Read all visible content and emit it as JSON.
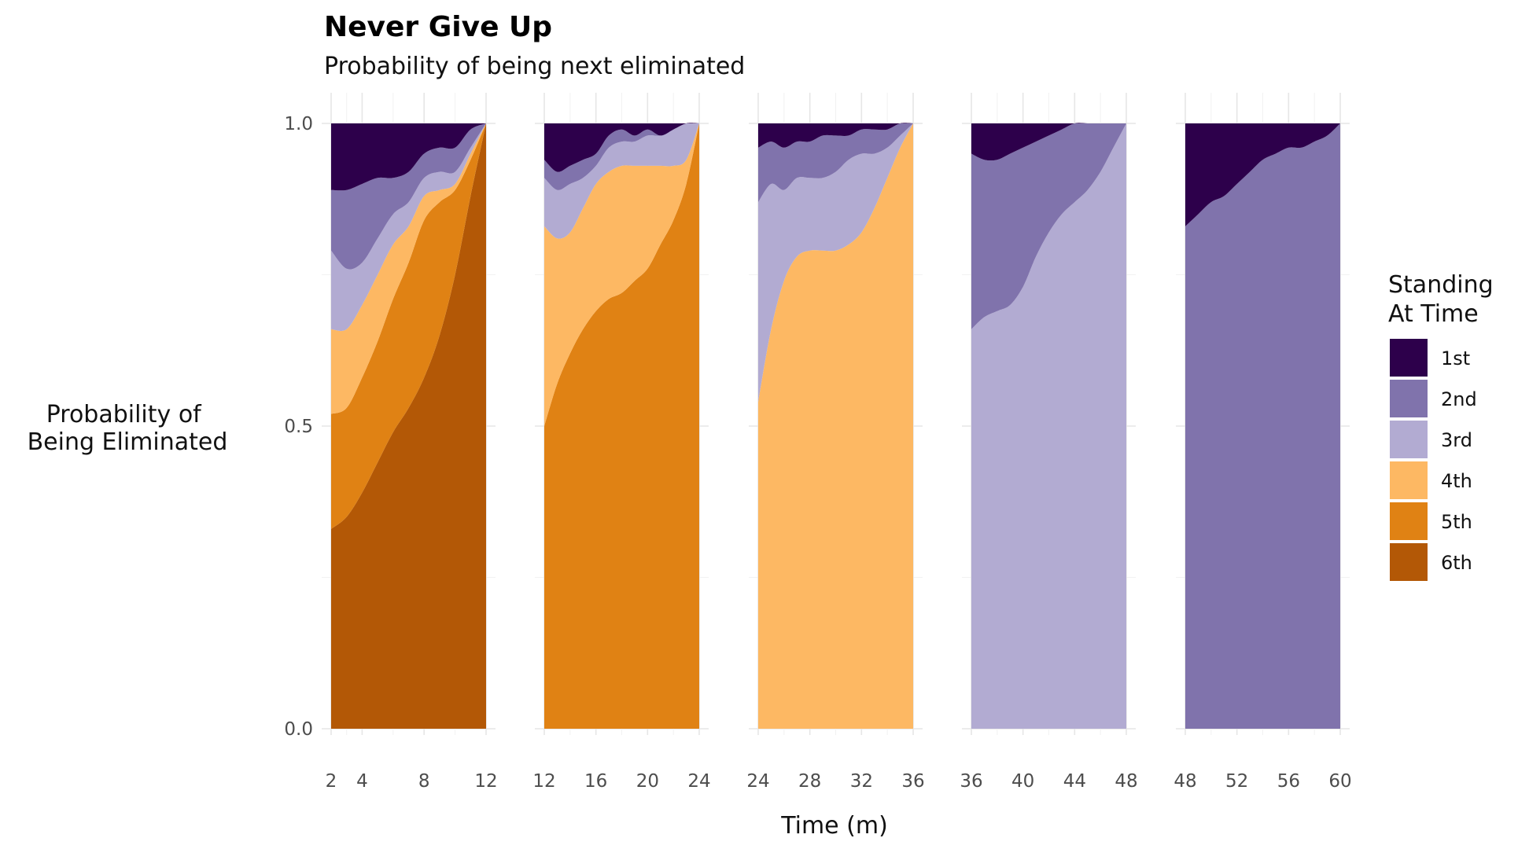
{
  "chart_data": {
    "type": "area",
    "title": "Never Give Up",
    "subtitle": "Probability of being next eliminated",
    "xlabel": "Time (m)",
    "ylabel_lines": [
      "Probability of",
      "Being Eliminated"
    ],
    "ylim": [
      0,
      1
    ],
    "y_ticks": [
      "0.0",
      "0.5",
      "1.0"
    ],
    "grid": true,
    "legend": {
      "title_lines": [
        "Standing",
        "At Time"
      ],
      "position": "right",
      "items": [
        {
          "label": "1st",
          "color": "#2d004b"
        },
        {
          "label": "2nd",
          "color": "#8073ac"
        },
        {
          "label": "3rd",
          "color": "#b2abd2"
        },
        {
          "label": "4th",
          "color": "#fdb863"
        },
        {
          "label": "5th",
          "color": "#e08214"
        },
        {
          "label": "6th",
          "color": "#b35806"
        }
      ]
    },
    "stack_order_bottom_to_top": [
      "6th",
      "5th",
      "4th",
      "3rd",
      "2nd",
      "1st"
    ],
    "panels": [
      {
        "x_ticks": [
          2,
          4,
          8,
          12
        ],
        "xlim": [
          2,
          12
        ],
        "x": [
          2,
          3,
          4,
          5,
          6,
          7,
          8,
          9,
          10,
          11,
          12
        ],
        "series": [
          {
            "name": "6th",
            "values": [
              0.33,
              0.35,
              0.39,
              0.44,
              0.49,
              0.53,
              0.58,
              0.65,
              0.75,
              0.88,
              1.0
            ]
          },
          {
            "name": "5th",
            "values": [
              0.19,
              0.18,
              0.19,
              0.2,
              0.22,
              0.24,
              0.26,
              0.22,
              0.14,
              0.06,
              0.0
            ]
          },
          {
            "name": "4th",
            "values": [
              0.14,
              0.13,
              0.12,
              0.11,
              0.09,
              0.06,
              0.04,
              0.02,
              0.01,
              0.01,
              0.0
            ]
          },
          {
            "name": "3rd",
            "values": [
              0.13,
              0.1,
              0.07,
              0.06,
              0.05,
              0.04,
              0.03,
              0.03,
              0.02,
              0.01,
              0.0
            ]
          },
          {
            "name": "2nd",
            "values": [
              0.1,
              0.13,
              0.13,
              0.1,
              0.06,
              0.05,
              0.04,
              0.04,
              0.04,
              0.03,
              0.0
            ]
          },
          {
            "name": "1st",
            "values": [
              0.11,
              0.11,
              0.1,
              0.09,
              0.09,
              0.08,
              0.05,
              0.04,
              0.04,
              0.01,
              0.0
            ]
          }
        ]
      },
      {
        "x_ticks": [
          12,
          16,
          20,
          24
        ],
        "xlim": [
          12,
          24
        ],
        "x": [
          12,
          13,
          14,
          15,
          16,
          17,
          18,
          19,
          20,
          21,
          22,
          23,
          24
        ],
        "series": [
          {
            "name": "6th",
            "values": [
              0,
              0,
              0,
              0,
              0,
              0,
              0,
              0,
              0,
              0,
              0,
              0,
              0
            ]
          },
          {
            "name": "5th",
            "values": [
              0.5,
              0.57,
              0.62,
              0.66,
              0.69,
              0.71,
              0.72,
              0.74,
              0.76,
              0.8,
              0.84,
              0.9,
              1.0
            ]
          },
          {
            "name": "4th",
            "values": [
              0.33,
              0.24,
              0.2,
              0.2,
              0.21,
              0.21,
              0.21,
              0.19,
              0.17,
              0.13,
              0.09,
              0.04,
              0.0
            ]
          },
          {
            "name": "3rd",
            "values": [
              0.08,
              0.08,
              0.08,
              0.05,
              0.03,
              0.04,
              0.04,
              0.04,
              0.05,
              0.05,
              0.06,
              0.06,
              0.0
            ]
          },
          {
            "name": "2nd",
            "values": [
              0.03,
              0.03,
              0.03,
              0.03,
              0.02,
              0.02,
              0.02,
              0.01,
              0.01,
              0.0,
              0.0,
              0.0,
              0.0
            ]
          },
          {
            "name": "1st",
            "values": [
              0.06,
              0.08,
              0.07,
              0.06,
              0.05,
              0.02,
              0.01,
              0.02,
              0.01,
              0.02,
              0.01,
              0.0,
              0.0
            ]
          }
        ]
      },
      {
        "x_ticks": [
          24,
          28,
          32,
          36
        ],
        "xlim": [
          24,
          36
        ],
        "x": [
          24,
          25,
          26,
          27,
          28,
          29,
          30,
          31,
          32,
          33,
          34,
          35,
          36
        ],
        "series": [
          {
            "name": "6th",
            "values": [
              0,
              0,
              0,
              0,
              0,
              0,
              0,
              0,
              0,
              0,
              0,
              0,
              0
            ]
          },
          {
            "name": "5th",
            "values": [
              0,
              0,
              0,
              0,
              0,
              0,
              0,
              0,
              0,
              0,
              0,
              0,
              0
            ]
          },
          {
            "name": "4th",
            "values": [
              0.54,
              0.66,
              0.74,
              0.78,
              0.79,
              0.79,
              0.79,
              0.8,
              0.82,
              0.86,
              0.91,
              0.96,
              1.0
            ]
          },
          {
            "name": "3rd",
            "values": [
              0.33,
              0.24,
              0.15,
              0.13,
              0.12,
              0.12,
              0.13,
              0.14,
              0.13,
              0.09,
              0.05,
              0.02,
              0.0
            ]
          },
          {
            "name": "2nd",
            "values": [
              0.09,
              0.07,
              0.07,
              0.06,
              0.06,
              0.07,
              0.06,
              0.04,
              0.04,
              0.04,
              0.03,
              0.02,
              0.0
            ]
          },
          {
            "name": "1st",
            "values": [
              0.04,
              0.03,
              0.04,
              0.03,
              0.03,
              0.02,
              0.02,
              0.02,
              0.01,
              0.01,
              0.01,
              0.0,
              0.0
            ]
          }
        ]
      },
      {
        "x_ticks": [
          36,
          40,
          44,
          48
        ],
        "xlim": [
          36,
          48
        ],
        "x": [
          36,
          37,
          38,
          39,
          40,
          41,
          42,
          43,
          44,
          45,
          46,
          47,
          48
        ],
        "series": [
          {
            "name": "6th",
            "values": [
              0,
              0,
              0,
              0,
              0,
              0,
              0,
              0,
              0,
              0,
              0,
              0,
              0
            ]
          },
          {
            "name": "5th",
            "values": [
              0,
              0,
              0,
              0,
              0,
              0,
              0,
              0,
              0,
              0,
              0,
              0,
              0
            ]
          },
          {
            "name": "4th",
            "values": [
              0,
              0,
              0,
              0,
              0,
              0,
              0,
              0,
              0,
              0,
              0,
              0,
              0
            ]
          },
          {
            "name": "3rd",
            "values": [
              0.66,
              0.68,
              0.69,
              0.7,
              0.73,
              0.78,
              0.82,
              0.85,
              0.87,
              0.89,
              0.92,
              0.96,
              1.0
            ]
          },
          {
            "name": "2nd",
            "values": [
              0.29,
              0.26,
              0.25,
              0.25,
              0.23,
              0.19,
              0.16,
              0.14,
              0.13,
              0.11,
              0.08,
              0.04,
              0.0
            ]
          },
          {
            "name": "1st",
            "values": [
              0.05,
              0.06,
              0.06,
              0.05,
              0.04,
              0.03,
              0.02,
              0.01,
              0.0,
              0.0,
              0.0,
              0.0,
              0.0
            ]
          }
        ]
      },
      {
        "x_ticks": [
          48,
          52,
          56,
          60
        ],
        "xlim": [
          48,
          60
        ],
        "x": [
          48,
          49,
          50,
          51,
          52,
          53,
          54,
          55,
          56,
          57,
          58,
          59,
          60
        ],
        "series": [
          {
            "name": "6th",
            "values": [
              0,
              0,
              0,
              0,
              0,
              0,
              0,
              0,
              0,
              0,
              0,
              0,
              0
            ]
          },
          {
            "name": "5th",
            "values": [
              0,
              0,
              0,
              0,
              0,
              0,
              0,
              0,
              0,
              0,
              0,
              0,
              0
            ]
          },
          {
            "name": "4th",
            "values": [
              0,
              0,
              0,
              0,
              0,
              0,
              0,
              0,
              0,
              0,
              0,
              0,
              0
            ]
          },
          {
            "name": "3rd",
            "values": [
              0,
              0,
              0,
              0,
              0,
              0,
              0,
              0,
              0,
              0,
              0,
              0,
              0
            ]
          },
          {
            "name": "2nd",
            "values": [
              0.83,
              0.85,
              0.87,
              0.88,
              0.9,
              0.92,
              0.94,
              0.95,
              0.96,
              0.96,
              0.97,
              0.98,
              1.0
            ]
          },
          {
            "name": "1st",
            "values": [
              0.17,
              0.15,
              0.13,
              0.12,
              0.1,
              0.08,
              0.06,
              0.05,
              0.04,
              0.04,
              0.03,
              0.02,
              0.0
            ]
          }
        ]
      }
    ]
  }
}
